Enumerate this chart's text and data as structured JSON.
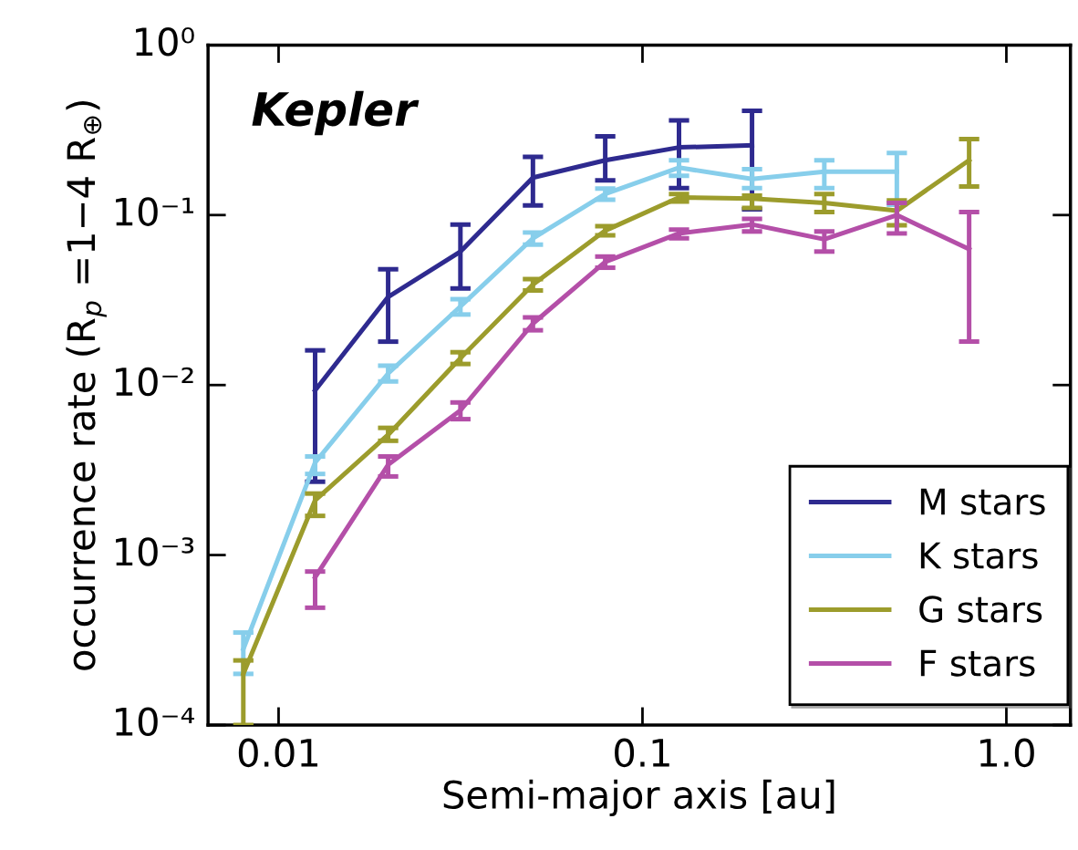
{
  "chart_data": {
    "type": "line",
    "xlabel": "Semi-major axis [au]",
    "ylabel": "occurrence rate (R$_{p}$ =1−4 R$_{⊕}$)",
    "annotations": [
      "Kepler"
    ],
    "x": [
      0.008,
      0.0126,
      0.02,
      0.0316,
      0.05,
      0.079,
      0.126,
      0.2,
      0.316,
      0.5,
      0.79
    ],
    "series": [
      {
        "name": "M stars",
        "color": "#2e2a8f",
        "values": [
          null,
          0.0093,
          0.033,
          0.061,
          0.166,
          0.21,
          0.25,
          0.257,
          null,
          null,
          null
        ],
        "errors": [
          null,
          [
            0.0027,
            0.016
          ],
          [
            0.018,
            0.048
          ],
          [
            0.037,
            0.088
          ],
          [
            0.114,
            0.22
          ],
          [
            0.16,
            0.29
          ],
          [
            0.144,
            0.36
          ],
          [
            0.108,
            0.41
          ],
          null,
          null,
          null
        ]
      },
      {
        "name": "K stars",
        "color": "#87ceeb",
        "values": [
          0.00028,
          0.0035,
          0.0117,
          0.029,
          0.073,
          0.133,
          0.19,
          0.163,
          0.18,
          0.18,
          null
        ],
        "errors": [
          [
            0.0002,
            0.00035
          ],
          [
            0.003,
            0.0038
          ],
          [
            0.0105,
            0.013
          ],
          [
            0.026,
            0.032
          ],
          [
            0.067,
            0.079
          ],
          [
            0.123,
            0.143
          ],
          [
            0.17,
            0.21
          ],
          [
            0.144,
            0.186
          ],
          [
            0.144,
            0.21
          ],
          [
            0.115,
            0.232
          ],
          null
        ]
      },
      {
        "name": "G stars",
        "color": "#9c9c2c",
        "values": [
          0.0002,
          0.0021,
          0.0051,
          0.0144,
          0.039,
          0.081,
          0.127,
          0.125,
          0.118,
          0.106,
          0.21
        ],
        "errors": [
          [
            0.0001,
            0.00024
          ],
          [
            0.0017,
            0.0023
          ],
          [
            0.0047,
            0.0056
          ],
          [
            0.0133,
            0.0156
          ],
          [
            0.036,
            0.042
          ],
          [
            0.076,
            0.086
          ],
          [
            0.12,
            0.133
          ],
          [
            0.11,
            0.13
          ],
          [
            0.104,
            0.133
          ],
          [
            0.087,
            0.122
          ],
          [
            0.147,
            0.28
          ]
        ]
      },
      {
        "name": "F stars",
        "color": "#b44fa8",
        "values": [
          null,
          0.00074,
          0.0034,
          0.0071,
          0.023,
          0.053,
          0.078,
          0.088,
          0.072,
          0.1,
          0.063
        ],
        "errors": [
          null,
          [
            0.00049,
            0.0008
          ],
          [
            0.0029,
            0.0038
          ],
          [
            0.0063,
            0.0079
          ],
          [
            0.021,
            0.025
          ],
          [
            0.049,
            0.057
          ],
          [
            0.073,
            0.082
          ],
          [
            0.08,
            0.095
          ],
          [
            0.061,
            0.08
          ],
          [
            0.078,
            0.118
          ],
          [
            0.018,
            0.104
          ]
        ]
      }
    ],
    "log": "xy",
    "xlim": [
      0.0064,
      1.5
    ],
    "xticks": [
      0.01,
      0.1,
      {
        "value": 1,
        "label": "1.0"
      }
    ],
    "ylim": [
      0.0001,
      1
    ],
    "yticks": [
      {
        "value": 0.0001,
        "label": "10⁻⁴"
      },
      {
        "value": 0.001,
        "label": "10⁻³"
      },
      {
        "value": 0.01,
        "label": "10⁻²"
      },
      {
        "value": 0.1,
        "label": "10⁻¹"
      },
      {
        "value": 1,
        "label": "10⁰"
      }
    ],
    "legend": "bottom right",
    "grid": false,
    "marker": "none",
    "line_style": "solid"
  }
}
